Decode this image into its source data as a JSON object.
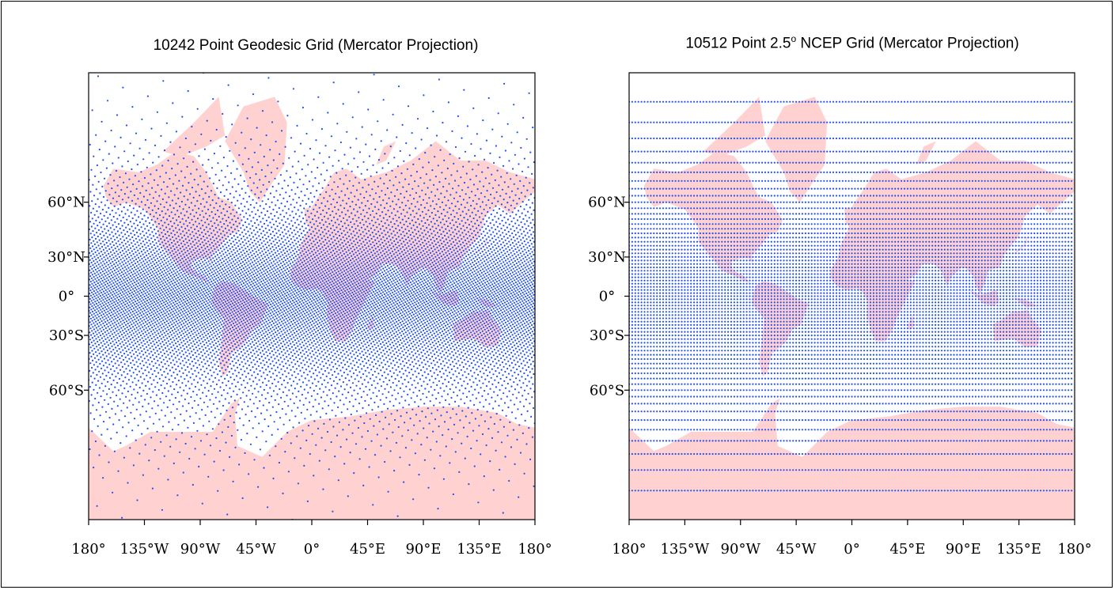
{
  "colors": {
    "land": "#ffd1d1",
    "grid_point": "#2050f0",
    "axis": "#000000",
    "background": "#ffffff"
  },
  "panels": [
    {
      "title_main": "10242 Point Geodesic Grid (Mercator Projection)",
      "title_sup": "",
      "title_rest": "",
      "projection": "mercator",
      "grid_type": "geodesic",
      "point_count": 10242
    },
    {
      "title_main": "10512 Point 2.5",
      "title_sup": "o",
      "title_rest": " NCEP Grid (Mercator Projection)",
      "projection": "mercator",
      "grid_type": "regular-lat-lon",
      "point_count": 10512,
      "spacing_deg": 2.5
    }
  ],
  "axes": {
    "x_ticks": [
      {
        "lon": -180,
        "label": "180°"
      },
      {
        "lon": -135,
        "label": "135°W"
      },
      {
        "lon": -90,
        "label": "90°W"
      },
      {
        "lon": -45,
        "label": "45°W"
      },
      {
        "lon": 0,
        "label": "0°"
      },
      {
        "lon": 45,
        "label": "45°E"
      },
      {
        "lon": 90,
        "label": "90°E"
      },
      {
        "lon": 135,
        "label": "135°E"
      },
      {
        "lon": 180,
        "label": "180°"
      }
    ],
    "y_ticks": [
      {
        "lat": 60,
        "label": "60°N"
      },
      {
        "lat": 30,
        "label": "30°N"
      },
      {
        "lat": 0,
        "label": "0°"
      },
      {
        "lat": -30,
        "label": "30°S"
      },
      {
        "lat": -60,
        "label": "60°S"
      }
    ],
    "lon_range": [
      -180,
      180
    ],
    "lat_range": [
      -85,
      85
    ]
  }
}
